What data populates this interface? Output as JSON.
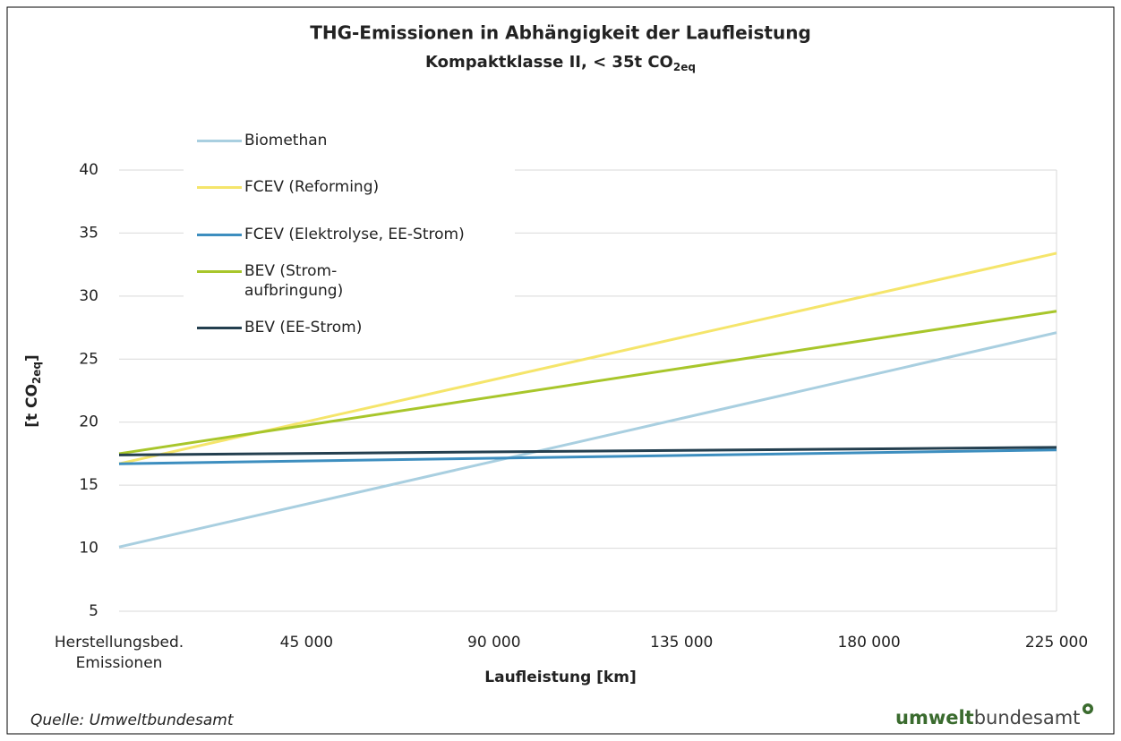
{
  "chart_data": {
    "type": "line",
    "title": "THG-Emissionen in Abhängigkeit der Laufleistung",
    "subtitle": {
      "text": "Kompaktklasse II, < 35t CO",
      "sub": "2eq"
    },
    "x_label": "Laufleistung [km]",
    "y_label": {
      "text": "[t CO",
      "sub": "2eq",
      "tail": "]"
    },
    "x": [
      0,
      225000
    ],
    "xlim": [
      0,
      225000
    ],
    "xticks": [
      {
        "value": 0,
        "label": "Herstellungsbed. Emissionen"
      },
      {
        "value": 45000,
        "label": "45 000"
      },
      {
        "value": 90000,
        "label": "90 000"
      },
      {
        "value": 135000,
        "label": "135 000"
      },
      {
        "value": 180000,
        "label": "180 000"
      },
      {
        "value": 225000,
        "label": "225 000"
      }
    ],
    "ylim": [
      5,
      40
    ],
    "yticks": [
      5,
      10,
      15,
      20,
      25,
      30,
      35,
      40
    ],
    "grid": true,
    "legend": "upper-left",
    "series": [
      {
        "name": "Biomethan",
        "color": "#a9cfe0",
        "values": [
          10.1,
          27.1
        ]
      },
      {
        "name": "FCEV (Reforming)",
        "color": "#f5e56b",
        "values": [
          16.7,
          33.4
        ]
      },
      {
        "name": "FCEV (Elektrolyse, EE-Strom)",
        "color": "#3d8ebf",
        "values": [
          16.7,
          17.8
        ]
      },
      {
        "name": "BEV (Strom-aufbringung)",
        "color": "#a8c62b",
        "values": [
          17.5,
          28.8
        ]
      },
      {
        "name": "BEV (EE-Strom)",
        "color": "#243f4f",
        "values": [
          17.4,
          18.0
        ]
      }
    ],
    "source": "Quelle: Umweltbundesamt",
    "logo": {
      "bold": "umwelt",
      "regular": "bundesamt"
    }
  }
}
